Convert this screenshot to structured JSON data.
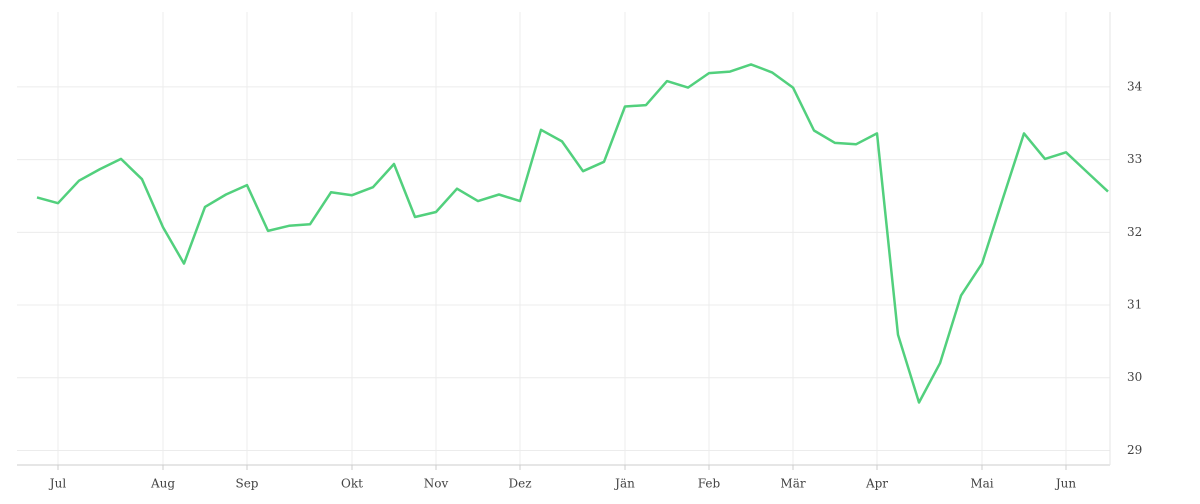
{
  "chart_data": {
    "type": "line",
    "categories": [
      null,
      "Jul",
      null,
      null,
      null,
      null,
      "Aug",
      null,
      null,
      null,
      "Sep",
      null,
      null,
      null,
      null,
      "Okt",
      null,
      null,
      null,
      "Nov",
      null,
      null,
      null,
      "Dez",
      null,
      null,
      null,
      null,
      "Jän",
      null,
      null,
      null,
      "Feb",
      null,
      null,
      null,
      "Mär",
      null,
      null,
      null,
      "Apr",
      null,
      null,
      null,
      null,
      "Mai",
      null,
      null,
      null,
      "Jun",
      null,
      null
    ],
    "series": [
      {
        "color": "#52d07d",
        "values": [
          32.48,
          32.4,
          32.71,
          32.87,
          33.01,
          32.73,
          32.07,
          31.57,
          32.35,
          32.52,
          32.65,
          32.02,
          32.09,
          32.11,
          32.55,
          32.51,
          32.62,
          32.94,
          32.21,
          32.28,
          32.6,
          32.43,
          32.52,
          32.43,
          33.41,
          33.25,
          32.84,
          32.97,
          33.73,
          33.75,
          34.08,
          33.99,
          34.19,
          34.21,
          34.31,
          34.2,
          33.99,
          33.4,
          33.23,
          33.21,
          33.36,
          30.59,
          29.66,
          30.2,
          31.13,
          31.57,
          32.47,
          33.36,
          33.01,
          33.1,
          32.83,
          32.56
        ]
      }
    ],
    "ylim": [
      28.8,
      35.03
    ],
    "yticks": [
      29,
      30,
      31,
      32,
      33,
      34
    ],
    "grid": true,
    "y_axis_side": "right"
  }
}
